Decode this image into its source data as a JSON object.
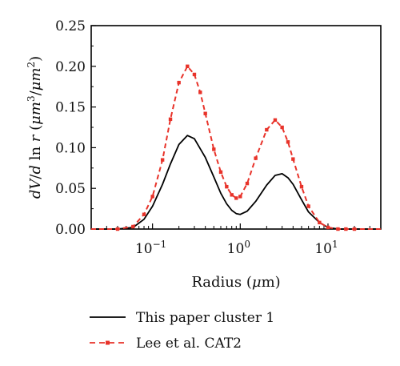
{
  "chart_data": {
    "type": "line",
    "xscale": "log",
    "xlim": [
      0.02,
      40
    ],
    "ylim": [
      0.0,
      0.25
    ],
    "xlabel": "Radius (μm)",
    "ylabel": "dV/d ln r (μm³/μm²)",
    "ylabel_parts": {
      "d1": "d",
      "V": "V",
      "slash": "/",
      "d2": "d",
      "ln": " ln ",
      "r": "r",
      "open": " (",
      "mu1": "μm",
      "exp3": "3",
      "slash2": "/",
      "mu2": "μm",
      "exp2": "2",
      "close": ")"
    },
    "xlabel_parts": {
      "pre": "Radius (",
      "mu": "μ",
      "post": "m)"
    },
    "xticks": [
      {
        "value": 0.1,
        "base": "10",
        "exp": "−1"
      },
      {
        "value": 1,
        "base": "10",
        "exp": "0"
      },
      {
        "value": 10,
        "base": "10",
        "exp": "1"
      }
    ],
    "yticks": [
      "0.00",
      "0.05",
      "0.10",
      "0.15",
      "0.20",
      "0.25"
    ],
    "legend_position": "bottom",
    "grid": false,
    "series": [
      {
        "name": "This paper cluster 1",
        "style": "solid",
        "color": "#000000",
        "x": [
          0.02,
          0.04,
          0.06,
          0.08,
          0.1,
          0.13,
          0.16,
          0.2,
          0.25,
          0.3,
          0.4,
          0.5,
          0.6,
          0.7,
          0.8,
          0.9,
          1.0,
          1.2,
          1.5,
          2.0,
          2.5,
          3.0,
          3.5,
          4.0,
          5.0,
          6.0,
          8.0,
          10,
          13,
          16,
          20,
          40
        ],
        "y": [
          0.0,
          0.0,
          0.002,
          0.012,
          0.028,
          0.055,
          0.08,
          0.104,
          0.115,
          0.111,
          0.088,
          0.064,
          0.044,
          0.031,
          0.023,
          0.019,
          0.018,
          0.022,
          0.034,
          0.054,
          0.066,
          0.068,
          0.063,
          0.055,
          0.036,
          0.021,
          0.008,
          0.002,
          0.0,
          0.0,
          0.0,
          0.0
        ]
      },
      {
        "name": "Lee et al. CAT2",
        "style": "dashed-markers",
        "color": "#e8332a",
        "x": [
          0.02,
          0.04,
          0.06,
          0.08,
          0.1,
          0.13,
          0.16,
          0.2,
          0.25,
          0.3,
          0.35,
          0.4,
          0.5,
          0.6,
          0.7,
          0.8,
          0.9,
          1.0,
          1.2,
          1.5,
          2.0,
          2.5,
          3.0,
          3.5,
          4.0,
          5.0,
          6.0,
          8.0,
          10,
          13,
          16,
          20,
          40
        ],
        "y": [
          0.0,
          0.0,
          0.003,
          0.018,
          0.04,
          0.085,
          0.135,
          0.18,
          0.2,
          0.19,
          0.168,
          0.142,
          0.098,
          0.07,
          0.052,
          0.042,
          0.038,
          0.04,
          0.056,
          0.087,
          0.122,
          0.134,
          0.125,
          0.107,
          0.086,
          0.052,
          0.028,
          0.008,
          0.002,
          0.0,
          0.0,
          0.0,
          0.0
        ]
      }
    ]
  },
  "colors": {
    "axis": "#000000",
    "series1": "#000000",
    "series2": "#e8332a"
  }
}
